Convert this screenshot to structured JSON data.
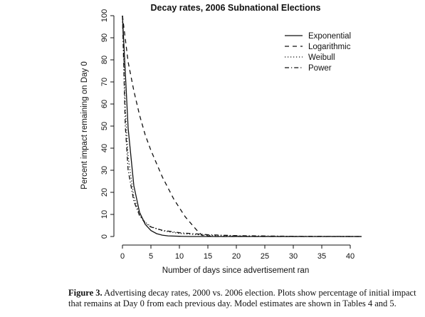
{
  "chart_data": {
    "type": "line",
    "title": "Decay rates, 2006 Subnational Elections",
    "xlabel": "Number of days since advertisement ran",
    "ylabel": "Percent impact remaining on Day 0",
    "xlim": [
      0,
      42
    ],
    "ylim": [
      0,
      100
    ],
    "xticks": [
      0,
      5,
      10,
      15,
      20,
      25,
      30,
      35,
      40
    ],
    "yticks": [
      0,
      10,
      20,
      30,
      40,
      50,
      60,
      70,
      80,
      90,
      100
    ],
    "grid": false,
    "legend_position": "top-right",
    "series": [
      {
        "name": "Exponential",
        "dash": "solid",
        "x": [
          0,
          1,
          2,
          3,
          4,
          5,
          6,
          7,
          8,
          10,
          12,
          15,
          20,
          30,
          42
        ],
        "y": [
          100,
          49,
          23,
          11,
          5.5,
          2.7,
          1.3,
          0.6,
          0.3,
          0.1,
          0,
          0,
          0,
          0,
          0
        ]
      },
      {
        "name": "Logarithmic",
        "dash": "dashed",
        "x": [
          0,
          1,
          2,
          3,
          4,
          5,
          6,
          7,
          8,
          9,
          10,
          11,
          12,
          13,
          14,
          16,
          20,
          30,
          42
        ],
        "y": [
          100,
          79,
          66,
          55,
          46,
          39,
          33,
          27,
          22,
          17,
          13,
          9,
          6,
          3,
          0.5,
          0,
          0,
          0,
          0
        ]
      },
      {
        "name": "Weibull",
        "dash": "dotted",
        "x": [
          0,
          0.5,
          1,
          2,
          3,
          4,
          5,
          7,
          10,
          15,
          20,
          30,
          42
        ],
        "y": [
          100,
          58,
          36,
          18,
          10,
          6.5,
          4.5,
          2.6,
          1.4,
          0.5,
          0.2,
          0,
          0
        ]
      },
      {
        "name": "Power",
        "dash": "dotdash",
        "x": [
          0,
          0.5,
          1,
          2,
          3,
          4,
          5,
          7,
          10,
          15,
          20,
          30,
          42
        ],
        "y": [
          100,
          50,
          30,
          16,
          9.5,
          6,
          4.3,
          2.8,
          1.7,
          0.8,
          0.4,
          0.1,
          0
        ]
      }
    ]
  },
  "caption": {
    "label": "Figure 3.",
    "text": "Advertising decay rates, 2000 vs. 2006 election. Plots show percentage of initial impact that remains at Day 0 from each previous day. Model estimates are shown in Tables 4 and 5."
  }
}
